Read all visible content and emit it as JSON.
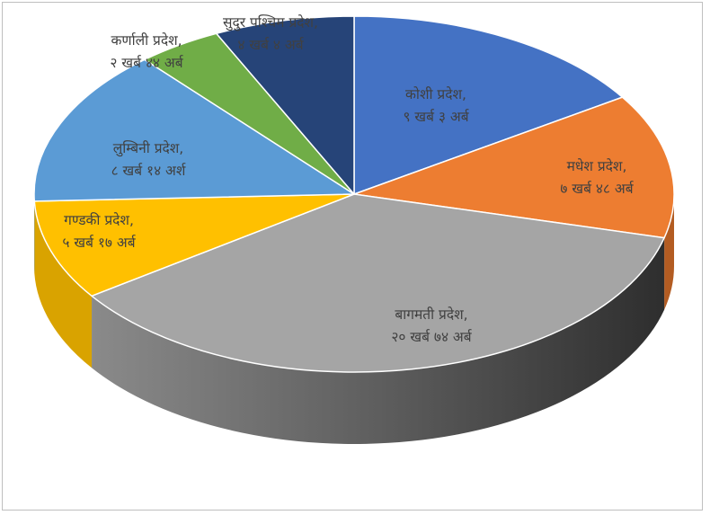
{
  "chart_data": {
    "type": "pie",
    "three_d": true,
    "series": [
      {
        "label_name": "कोशी प्रदेश,",
        "label_value": "९ खर्ब ३ अर्ब",
        "value": 903,
        "color": "#4472C4",
        "side_color": "#2F528F"
      },
      {
        "label_name": "मधेश प्रदेश,",
        "label_value": "७ खर्ब ४८ अर्ब",
        "value": 748,
        "color": "#ED7D31",
        "side_color": "#B35C22"
      },
      {
        "label_name": "बागमती प्रदेश,",
        "label_value": "२० खर्ब ७४ अर्ब",
        "value": 2074,
        "color": "#A5A5A5",
        "side_color": "#3F3F3F"
      },
      {
        "label_name": "गण्डकी प्रदेश,",
        "label_value": "५ खर्ब १७ अर्ब",
        "value": 517,
        "color": "#FFC000",
        "side_color": "#D9A300"
      },
      {
        "label_name": "लुम्बिनी प्रदेश,",
        "label_value": "८ खर्ब १४ अर्श",
        "value": 814,
        "color": "#5B9BD5",
        "side_color": "#3E75A8"
      },
      {
        "label_name": "कर्णाली प्रदेश,",
        "label_value": "२ खर्ब ४४ अर्ब",
        "value": 244,
        "color": "#70AD47",
        "side_color": "#507E32"
      },
      {
        "label_name": "सुदुर पश्चिम प्रदेश,",
        "label_value": "४ खर्ब ४ अर्ब",
        "value": 404,
        "color": "#264478",
        "side_color": "#1A2F55"
      }
    ]
  }
}
